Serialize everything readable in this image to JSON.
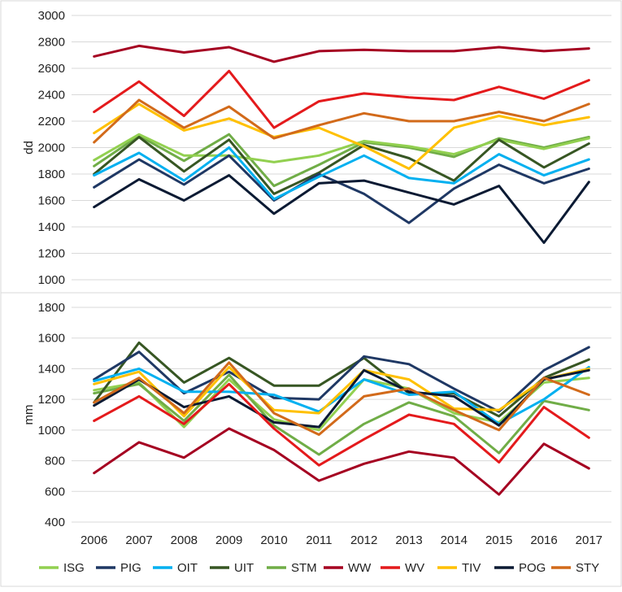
{
  "chart_data": {
    "type": "line",
    "x": [
      "2006",
      "2007",
      "2008",
      "2009",
      "2010",
      "2011",
      "2012",
      "2013",
      "2014",
      "2015",
      "2016",
      "2017"
    ],
    "legend": [
      {
        "name": "ISG",
        "color": "#92D050"
      },
      {
        "name": "PIG",
        "color": "#1F3864"
      },
      {
        "name": "OIT",
        "color": "#00B0F0"
      },
      {
        "name": "UIT",
        "color": "#375623"
      },
      {
        "name": "STM",
        "color": "#70AD47"
      },
      {
        "name": "WW",
        "color": "#A50021"
      },
      {
        "name": "WV",
        "color": "#E41A1C"
      },
      {
        "name": "TIV",
        "color": "#FFC000"
      },
      {
        "name": "POG",
        "color": "#0B1A33"
      },
      {
        "name": "STY",
        "color": "#D26A1A"
      }
    ],
    "panels": [
      {
        "ylabel": "dd",
        "ylim": [
          1000,
          3000
        ],
        "yticks": [
          "1000",
          "1200",
          "1400",
          "1600",
          "1800",
          "2000",
          "2200",
          "2400",
          "2600",
          "2800",
          "3000"
        ],
        "series": [
          {
            "name": "STM",
            "color": "#70AD47",
            "values": [
              1860,
              2090,
              1900,
              2100,
              1710,
              1870,
              2040,
              2000,
              1930,
              2070,
              2000,
              2080
            ]
          },
          {
            "name": "ISG",
            "color": "#92D050",
            "values": [
              1905,
              2100,
              1940,
              1940,
              1890,
              1940,
              2050,
              2010,
              1950,
              2060,
              1990,
              2070
            ]
          },
          {
            "name": "UIT",
            "color": "#375623",
            "values": [
              1800,
              2080,
              1820,
              2060,
              1650,
              1810,
              2020,
              1920,
              1750,
              2060,
              1850,
              2030
            ]
          },
          {
            "name": "PIG",
            "color": "#1F3864",
            "values": [
              1700,
              1910,
              1720,
              1940,
              1600,
              1800,
              1650,
              1430,
              1690,
              1870,
              1730,
              1840
            ]
          },
          {
            "name": "OIT",
            "color": "#00B0F0",
            "values": [
              1790,
              1960,
              1750,
              2000,
              1610,
              1780,
              1940,
              1770,
              1730,
              1950,
              1790,
              1910
            ]
          },
          {
            "name": "POG",
            "color": "#0B1A33",
            "values": [
              1550,
              1760,
              1600,
              1790,
              1500,
              1730,
              1750,
              1660,
              1570,
              1710,
              1280,
              1740
            ]
          },
          {
            "name": "TIV",
            "color": "#FFC000",
            "values": [
              2110,
              2330,
              2130,
              2220,
              2080,
              2150,
              2010,
              1840,
              2150,
              2240,
              2170,
              2230
            ]
          },
          {
            "name": "STY",
            "color": "#D26A1A",
            "values": [
              2040,
              2360,
              2150,
              2310,
              2070,
              2170,
              2260,
              2200,
              2200,
              2270,
              2200,
              2330
            ]
          },
          {
            "name": "WV",
            "color": "#E41A1C",
            "values": [
              2270,
              2500,
              2240,
              2580,
              2150,
              2350,
              2410,
              2380,
              2360,
              2460,
              2370,
              2510
            ]
          },
          {
            "name": "WW",
            "color": "#A50021",
            "values": [
              2690,
              2770,
              2720,
              2760,
              2650,
              2730,
              2740,
              2730,
              2730,
              2760,
              2730,
              2750
            ]
          }
        ]
      },
      {
        "ylabel": "mm",
        "ylim": [
          400,
          1800
        ],
        "yticks": [
          "400",
          "600",
          "800",
          "1000",
          "1200",
          "1400",
          "1600",
          "1800"
        ],
        "series": [
          {
            "name": "ISG",
            "color": "#92D050",
            "values": [
              1260,
              1310,
              1020,
              1330,
              1070,
              1000,
              1330,
              1270,
              1110,
              1050,
              1310,
              1340
            ]
          },
          {
            "name": "STM",
            "color": "#70AD47",
            "values": [
              1240,
              1300,
              1060,
              1360,
              1030,
              840,
              1040,
              1180,
              1090,
              850,
              1190,
              1130
            ]
          },
          {
            "name": "UIT",
            "color": "#375623",
            "values": [
              1180,
              1570,
              1310,
              1470,
              1290,
              1290,
              1470,
              1240,
              1240,
              1090,
              1340,
              1460
            ]
          },
          {
            "name": "PIG",
            "color": "#1F3864",
            "values": [
              1330,
              1510,
              1240,
              1380,
              1210,
              1200,
              1480,
              1430,
              1270,
              1120,
              1390,
              1540
            ]
          },
          {
            "name": "OIT",
            "color": "#00B0F0",
            "values": [
              1320,
              1400,
              1250,
              1250,
              1230,
              1120,
              1330,
              1230,
              1250,
              1040,
              1200,
              1410
            ]
          },
          {
            "name": "TIV",
            "color": "#FFC000",
            "values": [
              1300,
              1380,
              1090,
              1410,
              1130,
              1110,
              1390,
              1330,
              1140,
              1130,
              1330,
              1400
            ]
          },
          {
            "name": "POG",
            "color": "#0B1A33",
            "values": [
              1160,
              1330,
              1150,
              1220,
              1050,
              1020,
              1390,
              1250,
              1220,
              1030,
              1330,
              1390
            ]
          },
          {
            "name": "STY",
            "color": "#D26A1A",
            "values": [
              1180,
              1340,
              1110,
              1440,
              1110,
              970,
              1220,
              1270,
              1130,
              1000,
              1340,
              1230
            ]
          },
          {
            "name": "WV",
            "color": "#E41A1C",
            "values": [
              1060,
              1220,
              1040,
              1300,
              1010,
              770,
              940,
              1100,
              1040,
              790,
              1150,
              950
            ]
          },
          {
            "name": "WW",
            "color": "#A50021",
            "values": [
              720,
              920,
              820,
              1010,
              870,
              670,
              780,
              860,
              820,
              580,
              910,
              750
            ]
          }
        ]
      }
    ]
  }
}
